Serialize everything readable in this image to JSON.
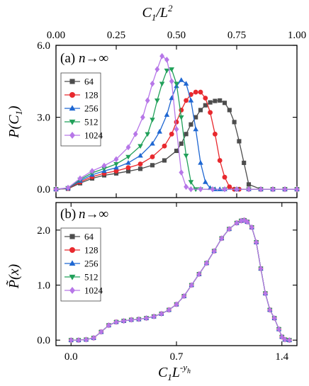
{
  "colors": {
    "64": "#4d4d4d",
    "128": "#e8292e",
    "256": "#1f67d2",
    "512": "#21a05a",
    "1024": "#b777e8"
  },
  "chart_data": [
    {
      "type": "line",
      "panel_label": "(a)",
      "annotation": "n→∞",
      "xlabel": "C1/L2",
      "ylabel": "P(C1)",
      "xlim": [
        0.0,
        1.0
      ],
      "ylim": [
        -0.35,
        6.0
      ],
      "x_ticks": [
        "0.00",
        "0.25",
        "0.50",
        "0.75",
        "1.00"
      ],
      "y_ticks": [
        "0.0",
        "3.0",
        "6.0"
      ],
      "legend_position": "upper-left",
      "series": [
        {
          "name": "64",
          "marker": "square",
          "x": [
            0.0,
            0.05,
            0.1,
            0.15,
            0.2,
            0.25,
            0.3,
            0.35,
            0.4,
            0.45,
            0.5,
            0.52,
            0.54,
            0.56,
            0.58,
            0.6,
            0.62,
            0.64,
            0.66,
            0.68,
            0.7,
            0.72,
            0.74,
            0.76,
            0.78,
            0.8,
            0.85,
            0.9,
            0.95,
            1.0
          ],
          "y": [
            0.0,
            0.02,
            0.25,
            0.45,
            0.58,
            0.66,
            0.75,
            0.85,
            1.0,
            1.2,
            1.6,
            1.9,
            2.3,
            2.7,
            3.0,
            3.3,
            3.5,
            3.62,
            3.68,
            3.7,
            3.6,
            3.3,
            2.8,
            2.0,
            1.1,
            0.2,
            0.0,
            0.0,
            0.0,
            0.0
          ]
        },
        {
          "name": "128",
          "marker": "circle",
          "x": [
            0.0,
            0.05,
            0.1,
            0.15,
            0.2,
            0.25,
            0.3,
            0.35,
            0.4,
            0.45,
            0.48,
            0.5,
            0.52,
            0.54,
            0.56,
            0.58,
            0.6,
            0.62,
            0.64,
            0.66,
            0.68,
            0.7,
            0.72,
            0.74,
            0.76,
            0.8,
            0.85,
            0.9,
            0.95,
            1.0
          ],
          "y": [
            0.0,
            0.03,
            0.3,
            0.52,
            0.66,
            0.76,
            0.9,
            1.05,
            1.35,
            1.8,
            2.3,
            2.8,
            3.3,
            3.7,
            3.95,
            4.05,
            4.05,
            3.8,
            3.2,
            2.3,
            1.2,
            0.5,
            0.1,
            0.0,
            0.0,
            0.0,
            0.0,
            0.0,
            0.0,
            0.0
          ]
        },
        {
          "name": "256",
          "marker": "triangle-up",
          "x": [
            0.0,
            0.05,
            0.1,
            0.15,
            0.2,
            0.25,
            0.3,
            0.35,
            0.4,
            0.43,
            0.46,
            0.48,
            0.5,
            0.52,
            0.54,
            0.56,
            0.58,
            0.6,
            0.62,
            0.64,
            0.66,
            0.68,
            0.7,
            0.75,
            0.8,
            0.85,
            0.9,
            0.95,
            1.0
          ],
          "y": [
            0.0,
            0.04,
            0.35,
            0.6,
            0.76,
            0.9,
            1.1,
            1.4,
            1.9,
            2.4,
            3.1,
            3.8,
            4.3,
            4.55,
            4.4,
            3.7,
            2.5,
            1.1,
            0.3,
            0.05,
            0.0,
            0.0,
            0.0,
            0.0,
            0.0,
            0.0,
            0.0,
            0.0,
            0.0
          ]
        },
        {
          "name": "512",
          "marker": "triangle-down",
          "x": [
            0.0,
            0.05,
            0.1,
            0.15,
            0.2,
            0.25,
            0.3,
            0.35,
            0.38,
            0.4,
            0.42,
            0.44,
            0.46,
            0.48,
            0.5,
            0.52,
            0.54,
            0.56,
            0.58,
            0.6,
            0.65,
            0.7,
            0.75,
            0.8,
            0.85,
            0.9,
            0.95,
            1.0
          ],
          "y": [
            0.0,
            0.05,
            0.4,
            0.68,
            0.86,
            1.05,
            1.35,
            1.8,
            2.3,
            2.9,
            3.7,
            4.4,
            4.95,
            5.0,
            4.4,
            3.0,
            1.4,
            0.3,
            0.0,
            0.0,
            0.0,
            0.0,
            0.0,
            0.0,
            0.0,
            0.0,
            0.0,
            0.0
          ]
        },
        {
          "name": "1024",
          "marker": "diamond",
          "x": [
            0.0,
            0.05,
            0.1,
            0.15,
            0.2,
            0.25,
            0.3,
            0.33,
            0.36,
            0.38,
            0.4,
            0.42,
            0.44,
            0.46,
            0.48,
            0.5,
            0.52,
            0.54,
            0.56,
            0.6,
            0.65,
            0.7,
            0.75,
            0.8,
            0.85,
            0.9,
            0.95,
            1.0
          ],
          "y": [
            0.0,
            0.06,
            0.45,
            0.76,
            0.98,
            1.25,
            1.75,
            2.3,
            3.0,
            3.7,
            4.4,
            5.0,
            5.55,
            5.4,
            4.5,
            2.5,
            0.7,
            0.1,
            0.0,
            0.0,
            0.0,
            0.0,
            0.0,
            0.0,
            0.0,
            0.0,
            0.0,
            0.0
          ]
        }
      ]
    },
    {
      "type": "line",
      "panel_label": "(b)",
      "annotation": "n→∞",
      "xlabel": "C1L-yh",
      "ylabel": "P̃(x)",
      "xlim": [
        -0.1,
        1.5
      ],
      "ylim": [
        -0.1,
        2.5
      ],
      "x_ticks": [
        "0.0",
        "0.7",
        "1.4"
      ],
      "y_ticks": [
        "0.0",
        "1.0",
        "2.0"
      ],
      "legend_position": "upper-left",
      "collapsed_curve": {
        "x": [
          0.0,
          0.05,
          0.1,
          0.15,
          0.2,
          0.25,
          0.3,
          0.35,
          0.4,
          0.45,
          0.5,
          0.55,
          0.6,
          0.65,
          0.7,
          0.75,
          0.8,
          0.85,
          0.9,
          0.95,
          1.0,
          1.05,
          1.1,
          1.13,
          1.15,
          1.17,
          1.2,
          1.23,
          1.26,
          1.29,
          1.32,
          1.35,
          1.38,
          1.4,
          1.42,
          1.45
        ],
        "y": [
          0.0,
          0.0,
          0.01,
          0.04,
          0.15,
          0.27,
          0.33,
          0.35,
          0.37,
          0.38,
          0.4,
          0.43,
          0.48,
          0.55,
          0.65,
          0.8,
          1.0,
          1.2,
          1.4,
          1.62,
          1.85,
          2.02,
          2.13,
          2.17,
          2.18,
          2.15,
          2.05,
          1.78,
          1.3,
          0.85,
          0.55,
          0.4,
          0.2,
          0.06,
          0.01,
          0.0
        ]
      },
      "series": [
        {
          "name": "64",
          "marker": "square"
        },
        {
          "name": "128",
          "marker": "circle"
        },
        {
          "name": "256",
          "marker": "triangle-up"
        },
        {
          "name": "512",
          "marker": "triangle-down"
        },
        {
          "name": "1024",
          "marker": "diamond"
        }
      ]
    }
  ]
}
